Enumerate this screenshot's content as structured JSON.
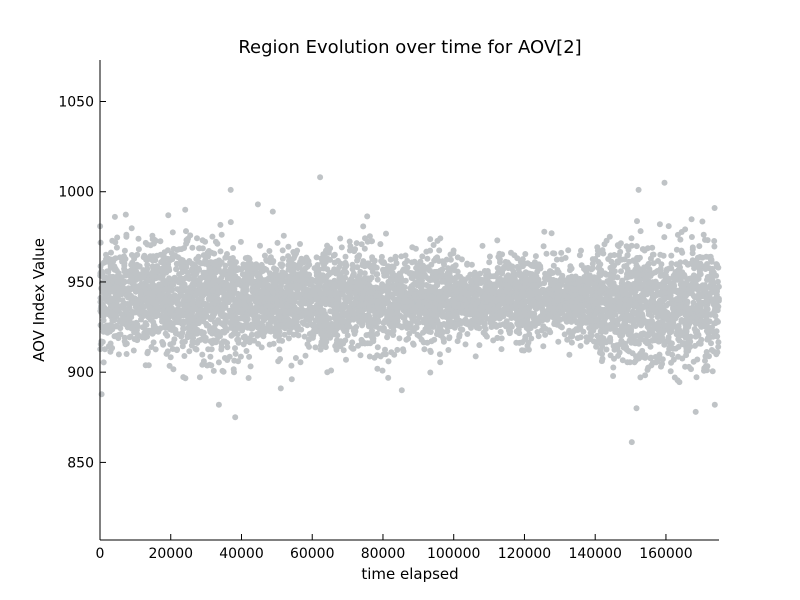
{
  "chart_data": {
    "type": "scatter",
    "title": "Region Evolution over time for AOV[2]",
    "xlabel": "time elapsed",
    "ylabel": "AOV Index Value",
    "xlim": [
      0,
      175000
    ],
    "ylim": [
      807,
      1073
    ],
    "x_ticks": [
      0,
      20000,
      40000,
      60000,
      80000,
      100000,
      120000,
      140000,
      160000
    ],
    "x_tick_labels": [
      "0",
      "20000",
      "40000",
      "60000",
      "80000",
      "100000",
      "120000",
      "140000",
      "160000"
    ],
    "y_ticks": [
      850,
      900,
      950,
      1000,
      1050
    ],
    "y_tick_labels": [
      "850",
      "900",
      "950",
      "1000",
      "1050"
    ],
    "grid": false,
    "series": [
      {
        "color": "#bfc3c6",
        "segments": [
          {
            "x_range": [
              0,
              40000
            ],
            "center": 940,
            "spread": 15,
            "outliers": [
              [
                900,
                990
              ],
              [
                1001,
                875
              ],
              [
                987,
                882
              ]
            ]
          },
          {
            "x_range": [
              40000,
              100000
            ],
            "center": 940,
            "spread": 13,
            "outliers": [
              [
                1008,
                891
              ],
              [
                993,
                890
              ],
              [
                989,
                900
              ]
            ]
          },
          {
            "x_range": [
              100000,
              140000
            ],
            "center": 940,
            "spread": 10,
            "outliers": [
              [
                977,
                912
              ],
              [
                970,
                918
              ]
            ]
          },
          {
            "x_range": [
              140000,
              175000
            ],
            "center": 938,
            "spread": 16,
            "outliers": [
              [
                1005,
                878
              ],
              [
                1001,
                880
              ],
              [
                991,
                882
              ]
            ]
          }
        ]
      }
    ]
  }
}
